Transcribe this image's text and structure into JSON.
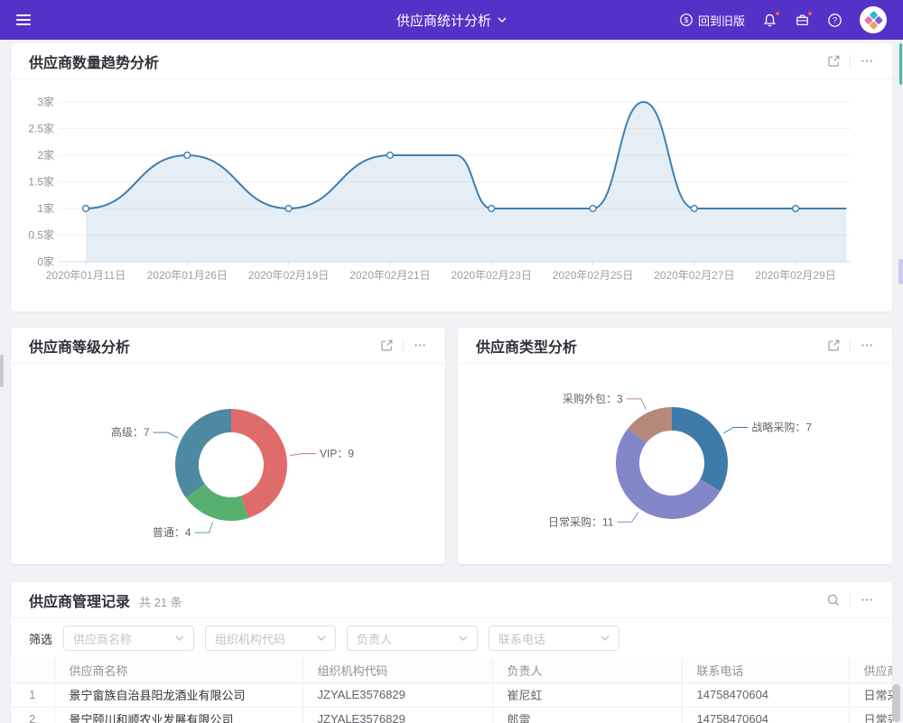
{
  "navbar": {
    "title": "供应商统计分析",
    "back_label": "回到旧版"
  },
  "cards": {
    "trend": {
      "title": "供应商数量趋势分析"
    },
    "level": {
      "title": "供应商等级分析"
    },
    "type": {
      "title": "供应商类型分析"
    }
  },
  "table_card": {
    "title": "供应商管理记录",
    "count": "共 21 条",
    "filter_label": "筛选",
    "filters": [
      "供应商名称",
      "组织机构代码",
      "负责人",
      "联系电话"
    ],
    "columns": [
      "",
      "供应商名称",
      "组织机构代码",
      "负责人",
      "联系电话",
      "供应商类型"
    ],
    "rows": [
      [
        "1",
        "景宁畲族自治县阳龙酒业有限公司",
        "JZYALE3576829",
        "崔尼虹",
        "14758470604",
        "日常采购"
      ],
      [
        "2",
        "景宁颐川和顺农业发展有限公司",
        "JZYALE3576829",
        "郎雷",
        "14758470604",
        "日常采购"
      ]
    ]
  },
  "chart_data": [
    {
      "type": "line",
      "title": "供应商数量趋势分析",
      "x": [
        "2020年01月11日",
        "2020年01月26日",
        "2020年02月19日",
        "2020年02月21日",
        "2020年02月23日",
        "2020年02月25日",
        "2020年02月27日",
        "2020年02月29日"
      ],
      "values": [
        1,
        2,
        1,
        2,
        1,
        1,
        1,
        1
      ],
      "smoothed_extra_points": [
        {
          "x_slot": 3.65,
          "value": 2
        },
        {
          "x_slot": 5.5,
          "value": 3
        },
        {
          "x_slot": 7.5,
          "value": 1
        }
      ],
      "y_ticks": [
        "0家",
        "0.5家",
        "1家",
        "1.5家",
        "2家",
        "2.5家",
        "3家"
      ],
      "ylim": [
        0,
        3
      ],
      "unit": "家",
      "smooth": true,
      "grid": true,
      "legend": false,
      "line_color": "#3e7fb2",
      "area_opacity": 0.13
    },
    {
      "type": "donut",
      "title": "供应商等级分析",
      "start": "top",
      "clockwise": true,
      "label_separator": "：",
      "series": [
        {
          "name": "VIP",
          "value": 9,
          "color": "#e06b6b"
        },
        {
          "name": "普通",
          "value": 4,
          "color": "#58b06f"
        },
        {
          "name": "高级",
          "value": 7,
          "color": "#4d8aa1"
        }
      ]
    },
    {
      "type": "donut",
      "title": "供应商类型分析",
      "start": "top",
      "clockwise": true,
      "label_separator": "：",
      "series": [
        {
          "name": "战略采购",
          "value": 7,
          "color": "#3e7ba8"
        },
        {
          "name": "日常采购",
          "value": 11,
          "color": "#8287ca"
        },
        {
          "name": "采购外包",
          "value": 3,
          "color": "#b58a7b"
        }
      ]
    }
  ]
}
